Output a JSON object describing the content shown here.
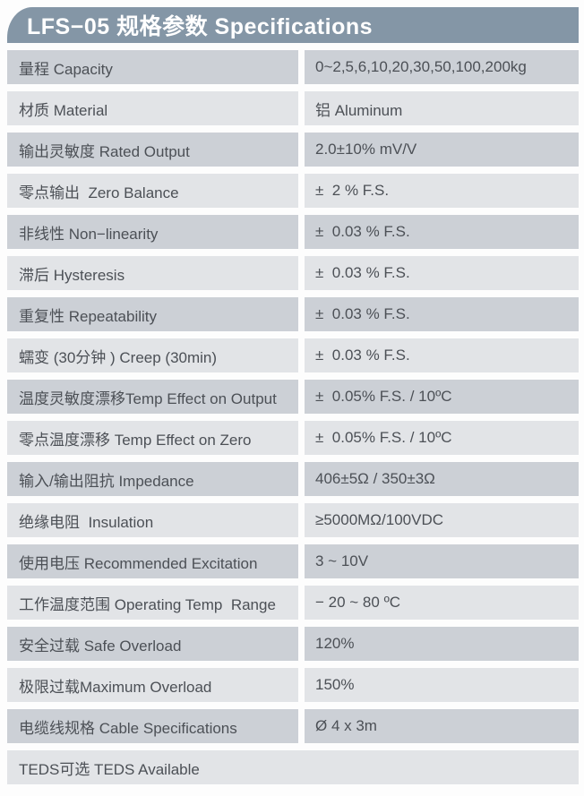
{
  "header": {
    "title": "LFS−05 规格参数 Specifications"
  },
  "colors": {
    "header_bg": "#8496a6",
    "header_text": "#ffffff",
    "row_dark_bg": "#ccd0d6",
    "row_light_bg": "#e2e4e7",
    "row_text": "#4c5056",
    "page_bg": "#fdfdfd"
  },
  "table": {
    "rows": [
      {
        "label": "量程 Capacity",
        "value": "0~2,5,6,10,20,30,50,100,200kg"
      },
      {
        "label": "材质 Material",
        "value": "铝 Aluminum"
      },
      {
        "label": "输出灵敏度 Rated Output",
        "value": "2.0±10% mV/V"
      },
      {
        "label": "零点输出  Zero Balance",
        "value": "±  2 % F.S."
      },
      {
        "label": "非线性 Non−linearity",
        "value": "±  0.03 % F.S."
      },
      {
        "label": "滞后 Hysteresis",
        "value": "±  0.03 % F.S."
      },
      {
        "label": "重复性 Repeatability",
        "value": "±  0.03 % F.S."
      },
      {
        "label": "蠕变 (30分钟 ) Creep (30min)",
        "value": "±  0.03 % F.S."
      },
      {
        "label": "温度灵敏度漂移Temp Effect on Output",
        "value": "±  0.05% F.S. / 10ºC"
      },
      {
        "label": "零点温度漂移 Temp Effect on Zero",
        "value": "±  0.05% F.S. / 10ºC"
      },
      {
        "label": "输入/输出阻抗 Impedance",
        "value": "406±5Ω / 350±3Ω"
      },
      {
        "label": "绝缘电阻  Insulation",
        "value": "≥5000MΩ/100VDC"
      },
      {
        "label": "使用电压 Recommended Excitation",
        "value": "3 ~ 10V"
      },
      {
        "label": "工作温度范围 Operating Temp  Range",
        "value": "− 20 ~ 80 ºC"
      },
      {
        "label": "安全过载 Safe Overload",
        "value": "120%"
      },
      {
        "label": "极限过载Maximum Overload",
        "value": "150%"
      },
      {
        "label": "电缆线规格 Cable Specifications",
        "value": "Ø 4 x 3m"
      }
    ],
    "footer": "TEDS可选 TEDS Available"
  }
}
